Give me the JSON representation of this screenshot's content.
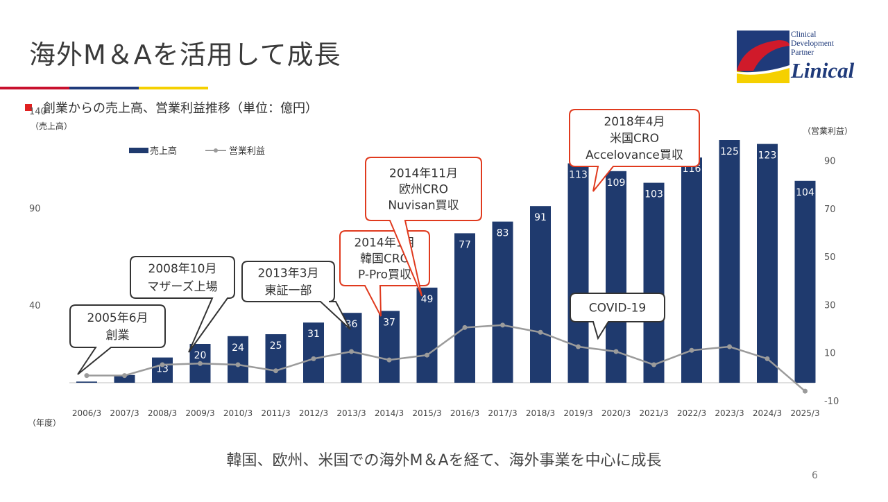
{
  "header": {
    "title": "海外M＆Aを活用して成長",
    "subtitle": "創業からの売上高、営業利益推移（単位：億円）"
  },
  "logo": {
    "line1": "Clinical",
    "line2": "Development",
    "line3": "Partner",
    "name": "Linical"
  },
  "colors": {
    "bar": "#1f3a6e",
    "line": "#9b9b9b",
    "callout_red": "#e03a1e",
    "callout_dark": "#333333",
    "accent_red": "#c8102e",
    "accent_blue": "#1f3a7a",
    "accent_yellow": "#f5d000"
  },
  "chart_data": {
    "type": "bar",
    "categories": [
      "2006/3",
      "2007/3",
      "2008/3",
      "2009/3",
      "2010/3",
      "2011/3",
      "2012/3",
      "2013/3",
      "2014/3",
      "2015/3",
      "2016/3",
      "2017/3",
      "2018/3",
      "2019/3",
      "2020/3",
      "2021/3",
      "2022/3",
      "2023/3",
      "2024/3",
      "2025/3"
    ],
    "series": [
      {
        "name": "売上高",
        "type": "bar",
        "axis": "left",
        "values": [
          0.6,
          4,
          13,
          20,
          24,
          25,
          31,
          36,
          37,
          49,
          77,
          83,
          91,
          113,
          109,
          103,
          116,
          125,
          123,
          104
        ],
        "labels": [
          "",
          "",
          "13",
          "20",
          "24",
          "25",
          "31",
          "36",
          "37",
          "49",
          "77",
          "83",
          "91",
          "113",
          "109",
          "103",
          "116",
          "125",
          "123",
          "104"
        ]
      },
      {
        "name": "営業利益",
        "type": "line",
        "axis": "right",
        "values": [
          0.5,
          0.5,
          5,
          5.5,
          5,
          2.5,
          7.5,
          10.5,
          7,
          9,
          20.5,
          21.5,
          18.5,
          12.5,
          10.5,
          5,
          11,
          12.5,
          7.5,
          -6
        ]
      }
    ],
    "y_left": {
      "label": "（売上高）",
      "ticks": [
        "140",
        "90",
        "40"
      ],
      "tick_values": [
        140,
        90,
        40
      ],
      "range": [
        -15,
        140
      ]
    },
    "y_right": {
      "label": "（営業利益）",
      "ticks": [
        "90",
        "70",
        "50",
        "30",
        "10",
        "-10"
      ],
      "tick_values": [
        90,
        70,
        50,
        30,
        10,
        -10
      ],
      "range": [
        -10,
        90
      ]
    },
    "x_label": "（年度）",
    "legend": {
      "bar_label": "売上高",
      "line_label": "営業利益",
      "position": "top-left"
    },
    "annotations": [
      {
        "text": [
          "2005年6月",
          "創業"
        ],
        "style": "dark",
        "index": 0
      },
      {
        "text": [
          "2008年10月",
          "マザーズ上場"
        ],
        "style": "dark",
        "index": 3
      },
      {
        "text": [
          "2013年3月",
          "東証一部"
        ],
        "style": "dark",
        "index": 7
      },
      {
        "text": [
          "2014年1月",
          "韓国CRO",
          "P-Pro買収"
        ],
        "style": "red",
        "index": 8
      },
      {
        "text": [
          "2014年11月",
          "欧州CRO",
          "Nuvisan買収"
        ],
        "style": "red",
        "index": 9
      },
      {
        "text": [
          "COVID-19"
        ],
        "style": "dark",
        "index": 14
      },
      {
        "text": [
          "2018年4月",
          "米国CRO",
          "Accelovance買収"
        ],
        "style": "red",
        "index": 13
      }
    ]
  },
  "footer": {
    "text": "韓国、欧州、米国での海外M＆Aを経て、海外事業を中心に成長",
    "page": "6"
  }
}
